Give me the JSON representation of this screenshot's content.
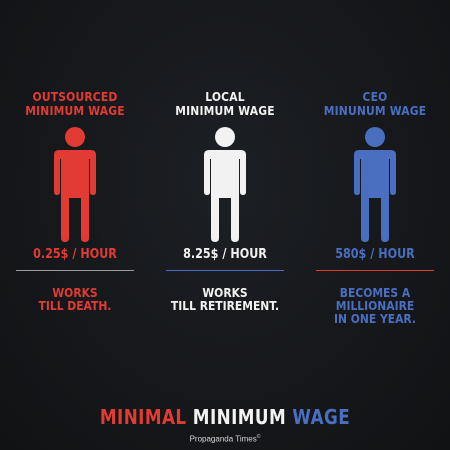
{
  "columns": [
    {
      "heading": [
        "OUTSOURCED",
        "MINIMUM WAGE"
      ],
      "wage": "0.25$ / HOUR",
      "note": [
        "WORKS",
        "TILL DEATH."
      ],
      "figure_icon": "person-icon",
      "color": "#e23b34"
    },
    {
      "heading": [
        "LOCAL",
        "MINIMUM WAGE"
      ],
      "wage": "8.25$ / HOUR",
      "note": [
        "WORKS",
        "TILL RETIREMENT."
      ],
      "figure_icon": "person-icon",
      "color": "#f2f2f2"
    },
    {
      "heading": [
        "CEO",
        "MINUNUM WAGE"
      ],
      "wage": "580$ / HOUR",
      "note": [
        "BECOMES A",
        "MILLIONAIRE",
        "IN ONE YEAR."
      ],
      "figure_icon": "person-icon",
      "color": "#4a6fc1"
    }
  ],
  "title": {
    "part1": "MINIMAL",
    "part2": "MINIMUM",
    "part3": "WAGE"
  },
  "credit": {
    "text": "Propaganda Times",
    "mark": "©"
  },
  "colors": {
    "red": "#e23b34",
    "white": "#f2f2f2",
    "blue": "#4a6fc1",
    "background": "#141619"
  }
}
